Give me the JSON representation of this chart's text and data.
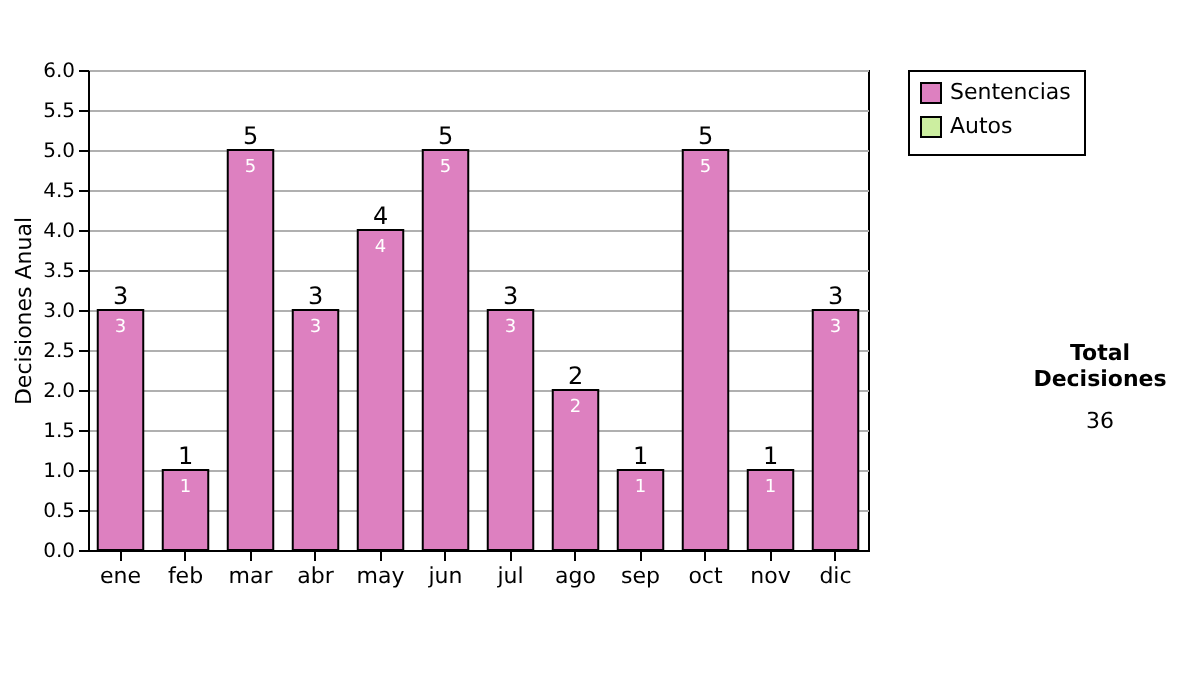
{
  "chart_data": {
    "type": "bar",
    "ylabel": "Decisiones Anual",
    "categories": [
      "ene",
      "feb",
      "mar",
      "abr",
      "may",
      "jun",
      "jul",
      "ago",
      "sep",
      "oct",
      "nov",
      "dic"
    ],
    "series": [
      {
        "name": "Sentencias",
        "color": "#dd80c0",
        "values": [
          3,
          1,
          5,
          3,
          4,
          5,
          3,
          2,
          1,
          5,
          1,
          3
        ]
      },
      {
        "name": "Autos",
        "color": "#cceea0",
        "values": [
          null,
          null,
          null,
          null,
          null,
          null,
          null,
          null,
          null,
          null,
          null,
          null
        ]
      }
    ],
    "stacked": true,
    "data_labels": true,
    "totals": [
      "3",
      "1",
      "5",
      "3",
      "4",
      "5",
      "3",
      "2",
      "1",
      "5",
      "1",
      "3"
    ],
    "ylim": [
      0,
      6
    ],
    "yticks": [
      {
        "value": 0,
        "label": "0.0"
      },
      {
        "value": 0.5,
        "label": "0.5"
      },
      {
        "value": 1,
        "label": "1.0"
      },
      {
        "value": 1.5,
        "label": "1.5"
      },
      {
        "value": 2,
        "label": "2.0"
      },
      {
        "value": 2.5,
        "label": "2.5"
      },
      {
        "value": 3,
        "label": "3.0"
      },
      {
        "value": 3.5,
        "label": "3.5"
      },
      {
        "value": 4,
        "label": "4.0"
      },
      {
        "value": 4.5,
        "label": "4.5"
      },
      {
        "value": 5,
        "label": "5.0"
      },
      {
        "value": 5.5,
        "label": "5.5"
      },
      {
        "value": 6,
        "label": "6.0"
      }
    ],
    "grid": "y",
    "legend": "right",
    "annotations": [
      "Total Decisiones",
      "36"
    ]
  }
}
